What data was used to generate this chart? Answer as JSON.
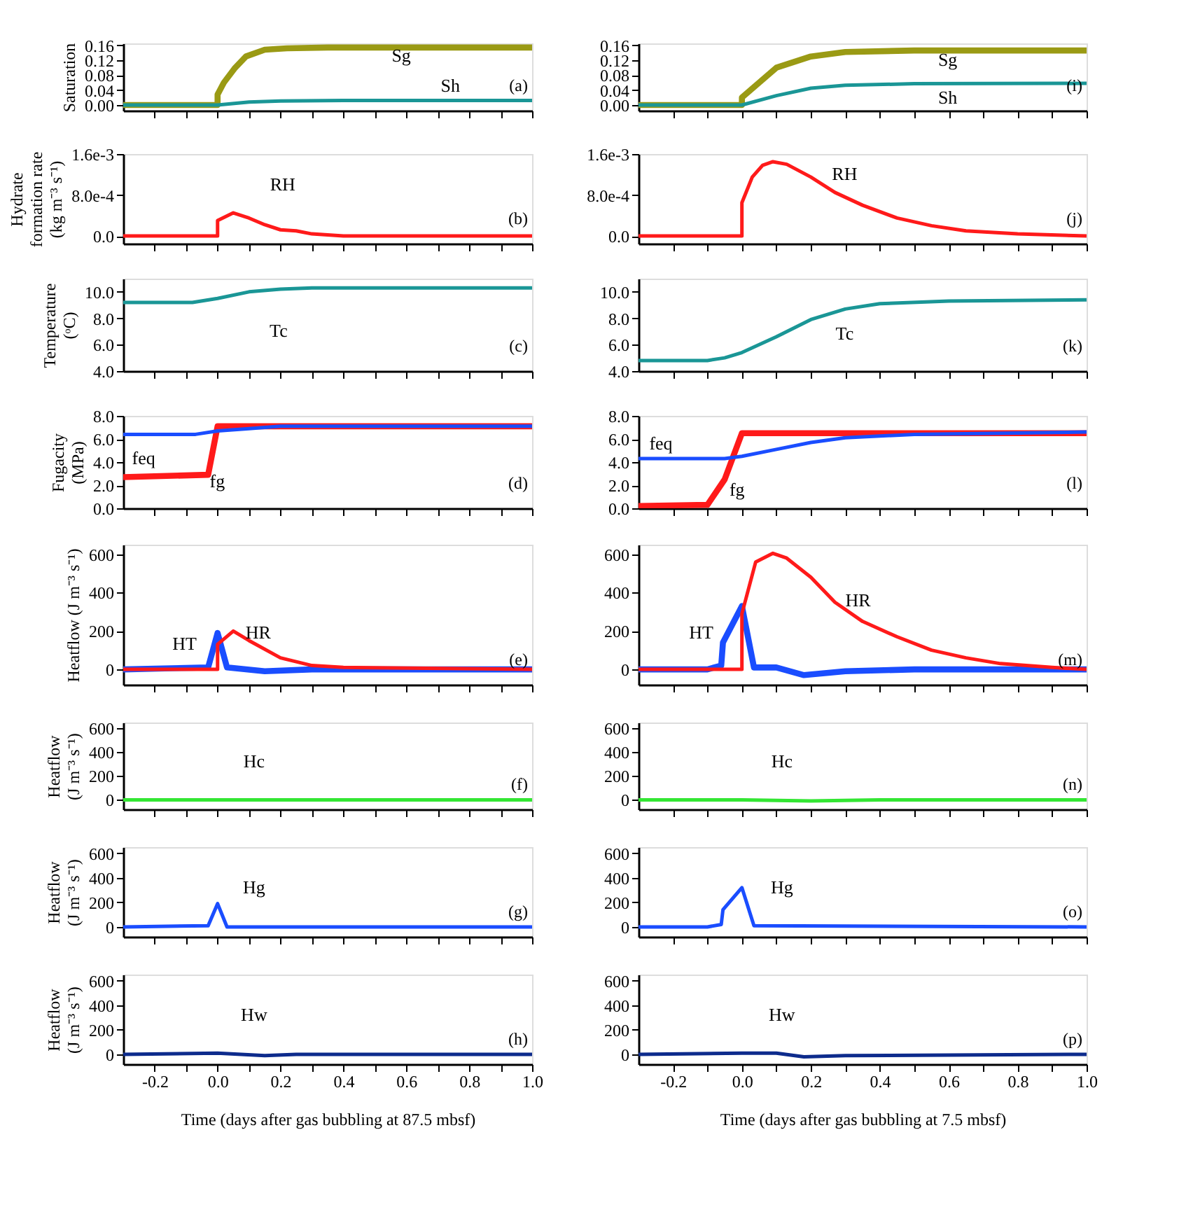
{
  "chart_data": [
    {
      "type": "line",
      "ylabel": "Saturation",
      "xlim": [
        -0.3,
        1.0
      ],
      "ylim": [
        -0.015,
        0.165
      ],
      "tick_labels": "y",
      "xticks": [
        {
          "value": -0.2,
          "label": null
        },
        {
          "value": -0.1,
          "label": null
        },
        {
          "value": 0,
          "label": null
        },
        {
          "value": 0.1,
          "label": null
        },
        {
          "value": 0.2,
          "label": null
        },
        {
          "value": 0.3,
          "label": null
        },
        {
          "value": 0.4,
          "label": null
        },
        {
          "value": 0.5,
          "label": null
        },
        {
          "value": 0.6,
          "label": null
        },
        {
          "value": 0.7,
          "label": null
        },
        {
          "value": 0.8,
          "label": null
        },
        {
          "value": 0.9,
          "label": null
        },
        {
          "value": 1.0,
          "label": null
        }
      ],
      "yticks": [
        {
          "value": 0,
          "label": "0.00"
        },
        {
          "value": 0.04,
          "label": "0.04"
        },
        {
          "value": 0.08,
          "label": "0.08"
        },
        {
          "value": 0.12,
          "label": "0.12"
        },
        {
          "value": 0.16,
          "label": "0.16"
        }
      ],
      "series": [
        {
          "name": "Sg",
          "color": "#9a9a14",
          "x": [
            -0.3,
            0,
            0,
            0.02,
            0.056,
            0.09,
            0.15,
            0.22,
            0.35,
            1.0
          ],
          "values": [
            0,
            0,
            0.028,
            0.06,
            0.1,
            0.13,
            0.148,
            0.152,
            0.154,
            0.154
          ]
        },
        {
          "name": "Sh",
          "color": "#1a9696",
          "x": [
            -0.3,
            0,
            0.1,
            0.2,
            0.4,
            1.0
          ],
          "values": [
            0,
            0,
            0.008,
            0.011,
            0.012,
            0.012
          ]
        }
      ],
      "annotations": [
        "(a)"
      ]
    },
    {
      "type": "line",
      "ylabel": "Hydrate\nformation rate\n(kg m⁻³ s⁻¹)",
      "xlim": [
        -0.3,
        1.0
      ],
      "ylim": [
        -0.00015,
        0.0016
      ],
      "tick_labels": "y",
      "xticks": [
        {
          "value": -0.2,
          "label": null
        },
        {
          "value": -0.1,
          "label": null
        },
        {
          "value": 0,
          "label": null
        },
        {
          "value": 0.1,
          "label": null
        },
        {
          "value": 0.2,
          "label": null
        },
        {
          "value": 0.3,
          "label": null
        },
        {
          "value": 0.4,
          "label": null
        },
        {
          "value": 0.5,
          "label": null
        },
        {
          "value": 0.6,
          "label": null
        },
        {
          "value": 0.7,
          "label": null
        },
        {
          "value": 0.8,
          "label": null
        },
        {
          "value": 0.9,
          "label": null
        },
        {
          "value": 1.0,
          "label": null
        }
      ],
      "yticks": [
        {
          "value": 0,
          "label": "0.0"
        },
        {
          "value": 0.0008,
          "label": "8.0e-4"
        },
        {
          "value": 0.0016,
          "label": "1.6e-3"
        }
      ],
      "series": [
        {
          "name": "RH",
          "color": "#ff1a1a",
          "x": [
            -0.3,
            0,
            0,
            0.05,
            0.1,
            0.15,
            0.2,
            0.25,
            0.3,
            0.4,
            1.0
          ],
          "values": [
            0,
            0,
            0.0003,
            0.00045,
            0.00035,
            0.00022,
            0.00012,
            0.0001,
            4e-05,
            0,
            0
          ]
        }
      ],
      "annotations": [
        "(b)"
      ]
    },
    {
      "type": "line",
      "ylabel": "Temperature\n(ᵒC)",
      "xlim": [
        -0.3,
        1.0
      ],
      "ylim": [
        4.0,
        11.0
      ],
      "tick_labels": "y",
      "xticks": [
        {
          "value": -0.2,
          "label": null
        },
        {
          "value": -0.1,
          "label": null
        },
        {
          "value": 0,
          "label": null
        },
        {
          "value": 0.1,
          "label": null
        },
        {
          "value": 0.2,
          "label": null
        },
        {
          "value": 0.3,
          "label": null
        },
        {
          "value": 0.4,
          "label": null
        },
        {
          "value": 0.5,
          "label": null
        },
        {
          "value": 0.6,
          "label": null
        },
        {
          "value": 0.7,
          "label": null
        },
        {
          "value": 0.8,
          "label": null
        },
        {
          "value": 0.9,
          "label": null
        },
        {
          "value": 1.0,
          "label": null
        }
      ],
      "yticks": [
        {
          "value": 4,
          "label": "4.0"
        },
        {
          "value": 6,
          "label": "6.0"
        },
        {
          "value": 8,
          "label": "8.0"
        },
        {
          "value": 10,
          "label": "10.0"
        }
      ],
      "series": [
        {
          "name": "Tc",
          "color": "#1a9696",
          "x": [
            -0.3,
            -0.08,
            0,
            0.1,
            0.2,
            0.3,
            1.0
          ],
          "values": [
            9.2,
            9.2,
            9.5,
            10.0,
            10.2,
            10.3,
            10.3
          ]
        }
      ],
      "annotations": [
        "(c)"
      ]
    },
    {
      "type": "line",
      "ylabel": "Fugacity\n(MPa)",
      "xlim": [
        -0.3,
        1.0
      ],
      "ylim": [
        0,
        8.0
      ],
      "tick_labels": "y",
      "xticks": [
        {
          "value": -0.2,
          "label": null
        },
        {
          "value": -0.1,
          "label": null
        },
        {
          "value": 0,
          "label": null
        },
        {
          "value": 0.1,
          "label": null
        },
        {
          "value": 0.2,
          "label": null
        },
        {
          "value": 0.3,
          "label": null
        },
        {
          "value": 0.4,
          "label": null
        },
        {
          "value": 0.5,
          "label": null
        },
        {
          "value": 0.6,
          "label": null
        },
        {
          "value": 0.7,
          "label": null
        },
        {
          "value": 0.8,
          "label": null
        },
        {
          "value": 0.9,
          "label": null
        },
        {
          "value": 1.0,
          "label": null
        }
      ],
      "yticks": [
        {
          "value": 0,
          "label": "0.0"
        },
        {
          "value": 2,
          "label": "2.0"
        },
        {
          "value": 4,
          "label": "4.0"
        },
        {
          "value": 6,
          "label": "6.0"
        },
        {
          "value": 8,
          "label": "8.0"
        }
      ],
      "series": [
        {
          "name": "fg",
          "color": "#ff1a1a",
          "x": [
            -0.3,
            -0.03,
            0,
            1.0
          ],
          "values": [
            2.7,
            2.9,
            7.1,
            7.1
          ]
        },
        {
          "name": "feq",
          "color": "#1a4dff",
          "x": [
            -0.3,
            -0.07,
            0,
            0.1,
            0.2,
            1.0
          ],
          "values": [
            6.4,
            6.4,
            6.7,
            6.9,
            7.1,
            7.1
          ]
        }
      ],
      "annotations": [
        "(d)"
      ]
    },
    {
      "type": "line",
      "ylabel": "Heatflow (J m⁻³ s⁻¹)",
      "xlim": [
        -0.3,
        1.0
      ],
      "ylim": [
        -80,
        650
      ],
      "tick_labels": "y",
      "xticks": [
        {
          "value": -0.2,
          "label": null
        },
        {
          "value": -0.1,
          "label": null
        },
        {
          "value": 0,
          "label": null
        },
        {
          "value": 0.1,
          "label": null
        },
        {
          "value": 0.2,
          "label": null
        },
        {
          "value": 0.3,
          "label": null
        },
        {
          "value": 0.4,
          "label": null
        },
        {
          "value": 0.5,
          "label": null
        },
        {
          "value": 0.6,
          "label": null
        },
        {
          "value": 0.7,
          "label": null
        },
        {
          "value": 0.8,
          "label": null
        },
        {
          "value": 0.9,
          "label": null
        },
        {
          "value": 1.0,
          "label": null
        }
      ],
      "yticks": [
        0,
        200,
        400,
        600
      ],
      "series": [
        {
          "name": "HT",
          "color": "#1a4dff",
          "x": [
            -0.3,
            -0.03,
            0,
            0.03,
            0.15,
            0.3,
            1.0
          ],
          "values": [
            0,
            10,
            190,
            10,
            -10,
            0,
            0
          ]
        },
        {
          "name": "HR",
          "color": "#ff1a1a",
          "x": [
            -0.3,
            0,
            0,
            0.05,
            0.1,
            0.2,
            0.3,
            0.4,
            1.0
          ],
          "values": [
            0,
            0,
            130,
            200,
            150,
            60,
            20,
            10,
            0
          ]
        }
      ],
      "annotations": [
        "(e)"
      ]
    },
    {
      "type": "line",
      "ylabel": "Heatflow\n(J m⁻³ s⁻¹)",
      "xlim": [
        -0.3,
        1.0
      ],
      "ylim": [
        -80,
        650
      ],
      "tick_labels": "y",
      "xticks": [
        {
          "value": -0.2,
          "label": null
        },
        {
          "value": -0.1,
          "label": null
        },
        {
          "value": 0,
          "label": null
        },
        {
          "value": 0.1,
          "label": null
        },
        {
          "value": 0.2,
          "label": null
        },
        {
          "value": 0.3,
          "label": null
        },
        {
          "value": 0.4,
          "label": null
        },
        {
          "value": 0.5,
          "label": null
        },
        {
          "value": 0.6,
          "label": null
        },
        {
          "value": 0.7,
          "label": null
        },
        {
          "value": 0.8,
          "label": null
        },
        {
          "value": 0.9,
          "label": null
        },
        {
          "value": 1.0,
          "label": null
        }
      ],
      "yticks": [
        0,
        200,
        400,
        600
      ],
      "series": [
        {
          "name": "Hc",
          "color": "#33e633",
          "x": [
            -0.3,
            1.0
          ],
          "values": [
            0,
            0
          ]
        }
      ],
      "annotations": [
        "(f)"
      ]
    },
    {
      "type": "line",
      "ylabel": "Heatflow\n(J m⁻³ s⁻¹)",
      "xlim": [
        -0.3,
        1.0
      ],
      "ylim": [
        -80,
        650
      ],
      "tick_labels": "y",
      "xticks": [
        {
          "value": -0.2,
          "label": null
        },
        {
          "value": -0.1,
          "label": null
        },
        {
          "value": 0,
          "label": null
        },
        {
          "value": 0.1,
          "label": null
        },
        {
          "value": 0.2,
          "label": null
        },
        {
          "value": 0.3,
          "label": null
        },
        {
          "value": 0.4,
          "label": null
        },
        {
          "value": 0.5,
          "label": null
        },
        {
          "value": 0.6,
          "label": null
        },
        {
          "value": 0.7,
          "label": null
        },
        {
          "value": 0.8,
          "label": null
        },
        {
          "value": 0.9,
          "label": null
        },
        {
          "value": 1.0,
          "label": null
        }
      ],
      "yticks": [
        0,
        200,
        400,
        600
      ],
      "series": [
        {
          "name": "Hg",
          "color": "#1a4dff",
          "x": [
            -0.3,
            -0.03,
            0,
            0.03,
            1.0
          ],
          "values": [
            0,
            10,
            190,
            0,
            0
          ]
        }
      ],
      "annotations": [
        "(g)"
      ]
    },
    {
      "type": "line",
      "ylabel": "Heatflow\n(J m⁻³ s⁻¹)",
      "xlabel": "Time (days after gas bubbling at 87.5 mbsf)",
      "xlim": [
        -0.3,
        1.0
      ],
      "ylim": [
        -80,
        650
      ],
      "xticks": [
        {
          "value": -0.2,
          "label": "-0.2"
        },
        {
          "value": -0.1,
          "label": null
        },
        {
          "value": 0,
          "label": "0.0"
        },
        {
          "value": 0.1,
          "label": null
        },
        {
          "value": 0.2,
          "label": "0.2"
        },
        {
          "value": 0.3,
          "label": null
        },
        {
          "value": 0.4,
          "label": "0.4"
        },
        {
          "value": 0.5,
          "label": null
        },
        {
          "value": 0.6,
          "label": "0.6"
        },
        {
          "value": 0.7,
          "label": null
        },
        {
          "value": 0.8,
          "label": "0.8"
        },
        {
          "value": 0.9,
          "label": null
        },
        {
          "value": 1.0,
          "label": "1.0"
        }
      ],
      "yticks": [
        0,
        200,
        400,
        600
      ],
      "series": [
        {
          "name": "Hw",
          "color": "#0d2b8c",
          "x": [
            -0.3,
            0,
            0.15,
            0.25,
            1.0
          ],
          "values": [
            0,
            10,
            -10,
            0,
            0
          ]
        }
      ],
      "annotations": [
        "(h)"
      ]
    },
    {
      "type": "line",
      "xlim": [
        -0.3,
        1.0
      ],
      "ylim": [
        -0.015,
        0.165
      ],
      "tick_labels": "y",
      "xticks": [
        {
          "value": -0.2,
          "label": null
        },
        {
          "value": -0.1,
          "label": null
        },
        {
          "value": 0,
          "label": null
        },
        {
          "value": 0.1,
          "label": null
        },
        {
          "value": 0.2,
          "label": null
        },
        {
          "value": 0.3,
          "label": null
        },
        {
          "value": 0.4,
          "label": null
        },
        {
          "value": 0.5,
          "label": null
        },
        {
          "value": 0.6,
          "label": null
        },
        {
          "value": 0.7,
          "label": null
        },
        {
          "value": 0.8,
          "label": null
        },
        {
          "value": 0.9,
          "label": null
        },
        {
          "value": 1.0,
          "label": null
        }
      ],
      "yticks": [
        {
          "value": 0,
          "label": "0.00"
        },
        {
          "value": 0.04,
          "label": "0.04"
        },
        {
          "value": 0.08,
          "label": "0.08"
        },
        {
          "value": 0.12,
          "label": "0.12"
        },
        {
          "value": 0.16,
          "label": "0.16"
        }
      ],
      "series": [
        {
          "name": "Sg",
          "color": "#9a9a14",
          "x": [
            -0.3,
            0,
            0,
            0.05,
            0.1,
            0.2,
            0.3,
            0.5,
            1.0
          ],
          "values": [
            0,
            0,
            0.02,
            0.06,
            0.1,
            0.13,
            0.142,
            0.146,
            0.146
          ]
        },
        {
          "name": "Sh",
          "color": "#1a9696",
          "x": [
            -0.3,
            0,
            0.1,
            0.2,
            0.3,
            0.5,
            1.0
          ],
          "values": [
            0,
            0,
            0.025,
            0.045,
            0.053,
            0.057,
            0.058
          ]
        }
      ],
      "annotations": [
        "(i)"
      ]
    },
    {
      "type": "line",
      "xlim": [
        -0.3,
        1.0
      ],
      "ylim": [
        -0.00015,
        0.0016
      ],
      "tick_labels": "y",
      "xticks": [
        {
          "value": -0.2,
          "label": null
        },
        {
          "value": -0.1,
          "label": null
        },
        {
          "value": 0,
          "label": null
        },
        {
          "value": 0.1,
          "label": null
        },
        {
          "value": 0.2,
          "label": null
        },
        {
          "value": 0.3,
          "label": null
        },
        {
          "value": 0.4,
          "label": null
        },
        {
          "value": 0.5,
          "label": null
        },
        {
          "value": 0.6,
          "label": null
        },
        {
          "value": 0.7,
          "label": null
        },
        {
          "value": 0.8,
          "label": null
        },
        {
          "value": 0.9,
          "label": null
        },
        {
          "value": 1.0,
          "label": null
        }
      ],
      "yticks": [
        {
          "value": 0,
          "label": "0.0"
        },
        {
          "value": 0.0008,
          "label": "8.0e-4"
        },
        {
          "value": 0.0016,
          "label": "1.6e-3"
        }
      ],
      "series": [
        {
          "name": "RH",
          "color": "#ff1a1a",
          "x": [
            -0.3,
            0,
            0,
            0.03,
            0.06,
            0.09,
            0.13,
            0.2,
            0.27,
            0.35,
            0.45,
            0.55,
            0.65,
            0.8,
            1.0
          ],
          "values": [
            0,
            0,
            0.00065,
            0.00115,
            0.00138,
            0.00145,
            0.0014,
            0.00115,
            0.00085,
            0.0006,
            0.00035,
            0.0002,
            0.0001,
            4e-05,
            0
          ]
        }
      ],
      "annotations": [
        "(j)"
      ]
    },
    {
      "type": "line",
      "xlim": [
        -0.3,
        1.0
      ],
      "ylim": [
        4.0,
        11.0
      ],
      "tick_labels": "y",
      "xticks": [
        {
          "value": -0.2,
          "label": null
        },
        {
          "value": -0.1,
          "label": null
        },
        {
          "value": 0,
          "label": null
        },
        {
          "value": 0.1,
          "label": null
        },
        {
          "value": 0.2,
          "label": null
        },
        {
          "value": 0.3,
          "label": null
        },
        {
          "value": 0.4,
          "label": null
        },
        {
          "value": 0.5,
          "label": null
        },
        {
          "value": 0.6,
          "label": null
        },
        {
          "value": 0.7,
          "label": null
        },
        {
          "value": 0.8,
          "label": null
        },
        {
          "value": 0.9,
          "label": null
        },
        {
          "value": 1.0,
          "label": null
        }
      ],
      "yticks": [
        {
          "value": 4,
          "label": "4.0"
        },
        {
          "value": 6,
          "label": "6.0"
        },
        {
          "value": 8,
          "label": "8.0"
        },
        {
          "value": 10,
          "label": "10.0"
        }
      ],
      "series": [
        {
          "name": "Tc",
          "color": "#1a9696",
          "x": [
            -0.3,
            -0.1,
            -0.05,
            0,
            0.1,
            0.2,
            0.3,
            0.4,
            0.6,
            1.0
          ],
          "values": [
            4.8,
            4.8,
            5.0,
            5.4,
            6.6,
            7.9,
            8.7,
            9.1,
            9.3,
            9.4
          ]
        }
      ],
      "annotations": [
        "(k)"
      ]
    },
    {
      "type": "line",
      "xlim": [
        -0.3,
        1.0
      ],
      "ylim": [
        0,
        8.0
      ],
      "tick_labels": "y",
      "xticks": [
        {
          "value": -0.2,
          "label": null
        },
        {
          "value": -0.1,
          "label": null
        },
        {
          "value": 0,
          "label": null
        },
        {
          "value": 0.1,
          "label": null
        },
        {
          "value": 0.2,
          "label": null
        },
        {
          "value": 0.3,
          "label": null
        },
        {
          "value": 0.4,
          "label": null
        },
        {
          "value": 0.5,
          "label": null
        },
        {
          "value": 0.6,
          "label": null
        },
        {
          "value": 0.7,
          "label": null
        },
        {
          "value": 0.8,
          "label": null
        },
        {
          "value": 0.9,
          "label": null
        },
        {
          "value": 1.0,
          "label": null
        }
      ],
      "yticks": [
        {
          "value": 0,
          "label": "0.0"
        },
        {
          "value": 2,
          "label": "2.0"
        },
        {
          "value": 4,
          "label": "4.0"
        },
        {
          "value": 6,
          "label": "6.0"
        },
        {
          "value": 8,
          "label": "8.0"
        }
      ],
      "series": [
        {
          "name": "fg",
          "color": "#ff1a1a",
          "x": [
            -0.3,
            -0.1,
            -0.05,
            0,
            1.0
          ],
          "values": [
            0.2,
            0.3,
            2.5,
            6.5,
            6.5
          ]
        },
        {
          "name": "feq",
          "color": "#1a4dff",
          "x": [
            -0.3,
            -0.05,
            0,
            0.1,
            0.2,
            0.3,
            0.5,
            1.0
          ],
          "values": [
            4.3,
            4.3,
            4.5,
            5.1,
            5.7,
            6.1,
            6.4,
            6.6
          ]
        }
      ],
      "annotations": [
        "(l)"
      ]
    },
    {
      "type": "line",
      "xlim": [
        -0.3,
        1.0
      ],
      "ylim": [
        -80,
        650
      ],
      "tick_labels": "y",
      "xticks": [
        {
          "value": -0.2,
          "label": null
        },
        {
          "value": -0.1,
          "label": null
        },
        {
          "value": 0,
          "label": null
        },
        {
          "value": 0.1,
          "label": null
        },
        {
          "value": 0.2,
          "label": null
        },
        {
          "value": 0.3,
          "label": null
        },
        {
          "value": 0.4,
          "label": null
        },
        {
          "value": 0.5,
          "label": null
        },
        {
          "value": 0.6,
          "label": null
        },
        {
          "value": 0.7,
          "label": null
        },
        {
          "value": 0.8,
          "label": null
        },
        {
          "value": 0.9,
          "label": null
        },
        {
          "value": 1.0,
          "label": null
        }
      ],
      "yticks": [
        0,
        200,
        400,
        600
      ],
      "series": [
        {
          "name": "HT",
          "color": "#1a4dff",
          "x": [
            -0.3,
            -0.1,
            -0.06,
            -0.055,
            0,
            0.035,
            0.1,
            0.18,
            0.3,
            0.5,
            1.0
          ],
          "values": [
            0,
            0,
            20,
            140,
            330,
            10,
            10,
            -30,
            -10,
            0,
            0
          ]
        },
        {
          "name": "HR",
          "color": "#ff1a1a",
          "x": [
            -0.3,
            0,
            0,
            0.04,
            0.09,
            0.13,
            0.2,
            0.27,
            0.35,
            0.45,
            0.55,
            0.65,
            0.75,
            0.9,
            1.0
          ],
          "values": [
            0,
            0,
            290,
            560,
            605,
            580,
            480,
            350,
            250,
            170,
            100,
            60,
            30,
            10,
            0
          ]
        }
      ],
      "annotations": [
        "(m)"
      ]
    },
    {
      "type": "line",
      "xlim": [
        -0.3,
        1.0
      ],
      "ylim": [
        -80,
        650
      ],
      "tick_labels": "y",
      "xticks": [
        {
          "value": -0.2,
          "label": null
        },
        {
          "value": -0.1,
          "label": null
        },
        {
          "value": 0,
          "label": null
        },
        {
          "value": 0.1,
          "label": null
        },
        {
          "value": 0.2,
          "label": null
        },
        {
          "value": 0.3,
          "label": null
        },
        {
          "value": 0.4,
          "label": null
        },
        {
          "value": 0.5,
          "label": null
        },
        {
          "value": 0.6,
          "label": null
        },
        {
          "value": 0.7,
          "label": null
        },
        {
          "value": 0.8,
          "label": null
        },
        {
          "value": 0.9,
          "label": null
        },
        {
          "value": 1.0,
          "label": null
        }
      ],
      "yticks": [
        0,
        200,
        400,
        600
      ],
      "series": [
        {
          "name": "Hc",
          "color": "#33e633",
          "x": [
            -0.3,
            0,
            0.2,
            0.4,
            1.0
          ],
          "values": [
            0,
            0,
            -10,
            0,
            0
          ]
        }
      ],
      "annotations": [
        "(n)"
      ]
    },
    {
      "type": "line",
      "xlim": [
        -0.3,
        1.0
      ],
      "ylim": [
        -80,
        650
      ],
      "tick_labels": "y",
      "xticks": [
        {
          "value": -0.2,
          "label": null
        },
        {
          "value": -0.1,
          "label": null
        },
        {
          "value": 0,
          "label": null
        },
        {
          "value": 0.1,
          "label": null
        },
        {
          "value": 0.2,
          "label": null
        },
        {
          "value": 0.3,
          "label": null
        },
        {
          "value": 0.4,
          "label": null
        },
        {
          "value": 0.5,
          "label": null
        },
        {
          "value": 0.6,
          "label": null
        },
        {
          "value": 0.7,
          "label": null
        },
        {
          "value": 0.8,
          "label": null
        },
        {
          "value": 0.9,
          "label": null
        },
        {
          "value": 1.0,
          "label": null
        }
      ],
      "yticks": [
        0,
        200,
        400,
        600
      ],
      "series": [
        {
          "name": "Hg",
          "color": "#1a4dff",
          "x": [
            -0.3,
            -0.1,
            -0.06,
            -0.055,
            0,
            0.035,
            1.0
          ],
          "values": [
            0,
            0,
            20,
            140,
            320,
            10,
            0
          ]
        }
      ],
      "annotations": [
        "(o)"
      ]
    },
    {
      "type": "line",
      "xlabel": "Time (days after gas bubbling at 7.5 mbsf)",
      "xlim": [
        -0.3,
        1.0
      ],
      "ylim": [
        -80,
        650
      ],
      "xticks": [
        {
          "value": -0.2,
          "label": "-0.2"
        },
        {
          "value": -0.1,
          "label": null
        },
        {
          "value": 0,
          "label": "0.0"
        },
        {
          "value": 0.1,
          "label": null
        },
        {
          "value": 0.2,
          "label": "0.2"
        },
        {
          "value": 0.3,
          "label": null
        },
        {
          "value": 0.4,
          "label": "0.4"
        },
        {
          "value": 0.5,
          "label": null
        },
        {
          "value": 0.6,
          "label": "0.6"
        },
        {
          "value": 0.7,
          "label": null
        },
        {
          "value": 0.8,
          "label": "0.8"
        },
        {
          "value": 0.9,
          "label": null
        },
        {
          "value": 1.0,
          "label": "1.0"
        }
      ],
      "yticks": [
        0,
        200,
        400,
        600
      ],
      "series": [
        {
          "name": "Hw",
          "color": "#0d2b8c",
          "x": [
            -0.3,
            0,
            0.1,
            0.18,
            0.3,
            1.0
          ],
          "values": [
            0,
            10,
            10,
            -20,
            -10,
            0
          ]
        }
      ],
      "annotations": [
        "(p)"
      ]
    }
  ]
}
